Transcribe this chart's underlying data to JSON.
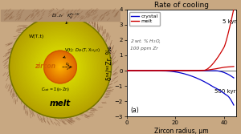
{
  "fig_width": 3.0,
  "fig_height": 1.67,
  "dpi": 100,
  "left_panel": {
    "outer_bg_color": "#c8a882",
    "outer_hatch_color": "#8B6040",
    "melt_color": "#c8c800",
    "melt_bright": "#e8e000",
    "zircon_color": "#e89000",
    "zircon_bright": "#ff9900",
    "zircon_core": "#ff6600",
    "inner_shadow": "#a09000",
    "top_bar_color": "#b09070",
    "top_bar_text_color": "#333333",
    "label_zircon_color": "#cc6600",
    "label_melt_color": "#000000"
  },
  "right_panel": {
    "title": "Rate of cooling",
    "xlabel": "Zircon radius, μm",
    "ylabel": "δ⁹⁴/⁹⁰Zr, ‰",
    "xlim": [
      0,
      45
    ],
    "ylim": [
      -3,
      4
    ],
    "yticks": [
      -3,
      -2,
      -1,
      0,
      1,
      2,
      3,
      4
    ],
    "xticks": [
      0,
      20,
      40
    ],
    "annotation_5kyr": "5 kyr",
    "annotation_500kyr": "500 kyr",
    "annotation_wt": "2 wt. % H$_2$O,",
    "annotation_ppm": "100 ppm Zr",
    "legend_crystal": "crystal",
    "legend_melt": "melt",
    "crystal_color": "#0000cc",
    "melt_color": "#cc0000",
    "panel_label": "(a)",
    "bg_color": "#ffffff"
  }
}
